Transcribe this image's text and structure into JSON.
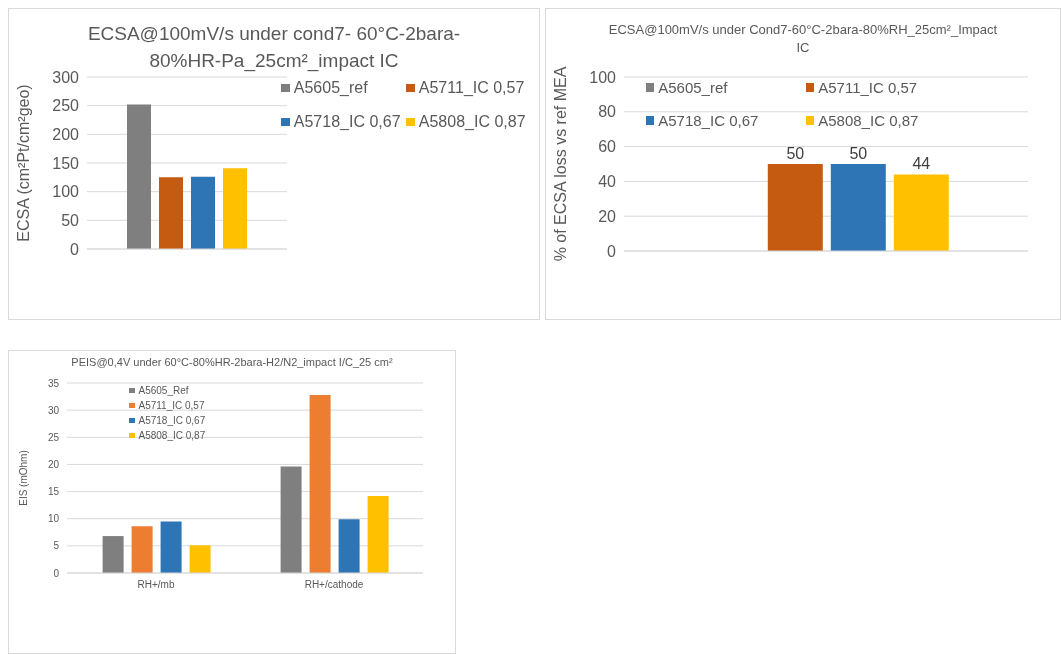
{
  "chart_data": [
    {
      "type": "bar",
      "title": "ECSA@100mV/s under cond7- 60°C-2bara-80%HR-Pa_25cm²_impact IC",
      "ylabel": "ECSA (cm²Pt/cm²geo)",
      "categories": [
        null
      ],
      "series": [
        {
          "name": "A5605_ref",
          "color": "#7f7f7f",
          "values": [
            252
          ]
        },
        {
          "name": "A5711_IC 0,57",
          "color": "#c55a11",
          "values": [
            125
          ]
        },
        {
          "name": "A5718_IC 0,67",
          "color": "#2e75b6",
          "values": [
            126
          ]
        },
        {
          "name": "A5808_IC 0,87",
          "color": "#ffc000",
          "values": [
            141
          ]
        }
      ],
      "ylim": [
        0,
        300
      ],
      "yticks": [
        0,
        50,
        100,
        150,
        200,
        250,
        300
      ],
      "grid": "y",
      "legend": "top right"
    },
    {
      "type": "bar",
      "title": "ECSA@100mV/s under Cond7-60°C-2bara-80%RH_25cm²_Impact IC",
      "ylabel": "% of ECSA loss vs ref MEA",
      "categories": [
        null
      ],
      "series": [
        {
          "name": "A5605_ref",
          "color": "#7f7f7f",
          "values": [
            null
          ]
        },
        {
          "name": "A5711_IC 0,57",
          "color": "#c55a11",
          "values": [
            50
          ]
        },
        {
          "name": "A5718_IC 0,67",
          "color": "#2e75b6",
          "values": [
            50
          ]
        },
        {
          "name": "A5808_IC 0,87",
          "color": "#ffc000",
          "values": [
            44
          ]
        }
      ],
      "ylim": [
        0,
        100
      ],
      "yticks": [
        0,
        20,
        40,
        60,
        80,
        100
      ],
      "grid": "y",
      "legend": "top",
      "data_labels": true
    },
    {
      "type": "bar",
      "title": "PEIS@0,4V under 60°C-80%HR-2bara-H2/N2_impact I/C_25 cm²",
      "ylabel": "EIS (mOhm)",
      "categories": [
        "RH+/mb",
        "RH+/cathode"
      ],
      "series": [
        {
          "name": "A5605_Ref",
          "color": "#7f7f7f",
          "values": [
            6.8,
            19.6
          ]
        },
        {
          "name": "A5711_IC 0,57",
          "color": "#ed7d31",
          "values": [
            8.6,
            32.8
          ]
        },
        {
          "name": "A5718_IC 0,67",
          "color": "#2e75b6",
          "values": [
            9.5,
            9.9
          ]
        },
        {
          "name": "A5808_IC 0,87",
          "color": "#ffc000",
          "values": [
            5.1,
            14.2
          ]
        }
      ],
      "ylim": [
        0,
        35
      ],
      "yticks": [
        0,
        5,
        10,
        15,
        20,
        25,
        30,
        35
      ],
      "grid": "y",
      "legend": "top left"
    }
  ]
}
